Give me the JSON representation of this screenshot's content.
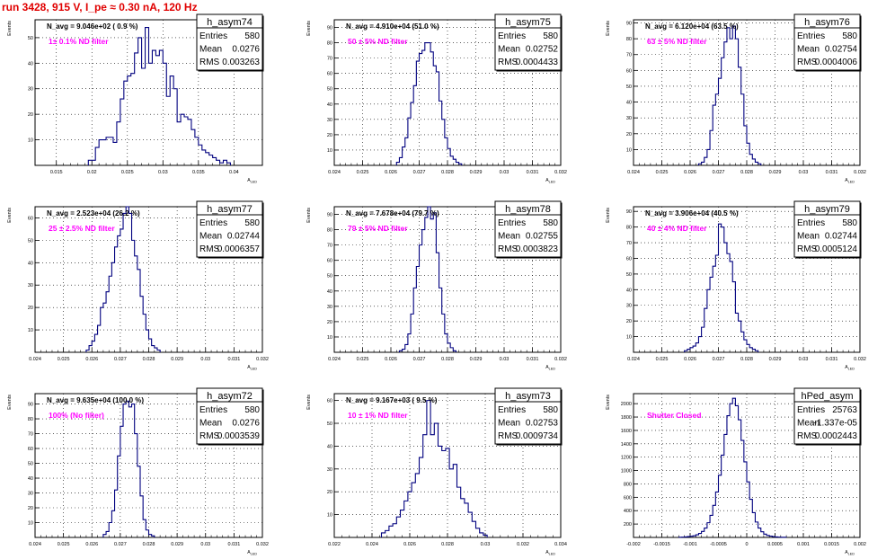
{
  "title": "run 3428,   915 V, I_pe ≈ 0.30 nA, 120 Hz",
  "x_axis_label": "A",
  "x_axis_label_sub": "LED",
  "y_axis_label": "Events",
  "colors": {
    "histogram": "#00007f",
    "grid": "#000000",
    "title": "#e00000",
    "filter_label": "#ff00ff"
  },
  "chart_data": [
    {
      "type": "bar",
      "name": "h_asym74",
      "navg": "N_avg = 9.046e+02 ( 0.9 %)",
      "filter": "1± 0.1% ND filter",
      "stats": {
        "entries": "580",
        "mean": "0.0276",
        "rms": "0.003263"
      },
      "xlim": [
        0.012,
        0.044
      ],
      "ylim": [
        0,
        57
      ],
      "xticks": [
        0.015,
        0.02,
        0.025,
        0.03,
        0.035,
        0.04
      ],
      "xtick_labels": [
        "0.015",
        "0.02",
        "0.025",
        "0.03",
        "0.035",
        "0.04"
      ],
      "yticks": [
        10,
        20,
        30,
        40,
        50
      ],
      "bin_start": 0.0195,
      "bin_width": 0.0005,
      "values": [
        2,
        2,
        7,
        10,
        10,
        11,
        11,
        9,
        17,
        26,
        33,
        35,
        36,
        44,
        50,
        38,
        54,
        40,
        45,
        43,
        45,
        40,
        27,
        35,
        30,
        17,
        20,
        19,
        18,
        14,
        11,
        8,
        6,
        5,
        4,
        3,
        2,
        1,
        2,
        1
      ]
    },
    {
      "type": "bar",
      "name": "h_asym75",
      "navg": "N_avg = 4.910e+04 (51.0 %)",
      "filter": "50 ± 5% ND filter",
      "stats": {
        "entries": "580",
        "mean": "0.02752",
        "rms": "0.0004433"
      },
      "xlim": [
        0.024,
        0.032
      ],
      "ylim": [
        0,
        95
      ],
      "xticks": [
        0.024,
        0.025,
        0.026,
        0.027,
        0.028,
        0.029,
        0.03,
        0.031,
        0.032
      ],
      "xtick_labels": [
        "0.024",
        "0.025",
        "0.026",
        "0.027",
        "0.028",
        "0.029",
        "0.03",
        "0.031",
        "0.032"
      ],
      "yticks": [
        10,
        20,
        30,
        40,
        50,
        60,
        70,
        80,
        90
      ],
      "bin_start": 0.0262,
      "bin_width": 0.0001,
      "values": [
        2,
        5,
        12,
        18,
        31,
        41,
        52,
        68,
        73,
        75,
        80,
        80,
        74,
        65,
        61,
        42,
        30,
        18,
        11,
        6,
        4,
        2,
        1
      ]
    },
    {
      "type": "bar",
      "name": "h_asym76",
      "navg": "N_avg = 6.120e+04 (63.5 %)",
      "filter": "63 ± 5% ND filter",
      "stats": {
        "entries": "580",
        "mean": "0.02754",
        "rms": "0.0004006"
      },
      "xlim": [
        0.024,
        0.032
      ],
      "ylim": [
        0,
        92
      ],
      "xticks": [
        0.024,
        0.025,
        0.026,
        0.027,
        0.028,
        0.029,
        0.03,
        0.031,
        0.032
      ],
      "xtick_labels": [
        "0.024",
        "0.025",
        "0.026",
        "0.027",
        "0.028",
        "0.029",
        "0.03",
        "0.031",
        "0.032"
      ],
      "yticks": [
        10,
        20,
        30,
        40,
        50,
        60,
        70,
        80,
        90
      ],
      "bin_start": 0.0263,
      "bin_width": 0.0001,
      "values": [
        1,
        2,
        5,
        10,
        22,
        38,
        45,
        55,
        68,
        78,
        87,
        80,
        88,
        80,
        62,
        45,
        25,
        14,
        7,
        4,
        2,
        1
      ]
    },
    {
      "type": "bar",
      "name": "h_asym77",
      "navg": "N_avg = 2.523e+04 (26.2 %)",
      "filter": "25 ± 2.5% ND filter",
      "stats": {
        "entries": "580",
        "mean": "0.02744",
        "rms": "0.0006357"
      },
      "xlim": [
        0.024,
        0.032
      ],
      "ylim": [
        0,
        65
      ],
      "xticks": [
        0.024,
        0.025,
        0.026,
        0.027,
        0.028,
        0.029,
        0.03,
        0.031,
        0.032
      ],
      "xtick_labels": [
        "0.024",
        "0.025",
        "0.026",
        "0.027",
        "0.028",
        "0.029",
        "0.03",
        "0.031",
        "0.032"
      ],
      "yticks": [
        10,
        20,
        30,
        40,
        50,
        60
      ],
      "bin_start": 0.0258,
      "bin_width": 0.0001,
      "values": [
        1,
        3,
        5,
        8,
        12,
        20,
        22,
        27,
        34,
        40,
        47,
        52,
        55,
        62,
        65,
        62,
        50,
        43,
        37,
        25,
        17,
        10,
        6,
        3,
        2,
        1
      ]
    },
    {
      "type": "bar",
      "name": "h_asym78",
      "navg": "N_avg = 7.678e+04 (79.7 %)",
      "filter": "79 ± 5% ND filter",
      "stats": {
        "entries": "580",
        "mean": "0.02755",
        "rms": "0.0003823"
      },
      "xlim": [
        0.024,
        0.032
      ],
      "ylim": [
        0,
        95
      ],
      "xticks": [
        0.024,
        0.025,
        0.026,
        0.027,
        0.028,
        0.029,
        0.03,
        0.031,
        0.032
      ],
      "xtick_labels": [
        "0.024",
        "0.025",
        "0.026",
        "0.027",
        "0.028",
        "0.029",
        "0.03",
        "0.031",
        "0.032"
      ],
      "yticks": [
        10,
        20,
        30,
        40,
        50,
        60,
        70,
        80,
        90
      ],
      "bin_start": 0.0263,
      "bin_width": 0.0001,
      "values": [
        1,
        2,
        5,
        12,
        25,
        42,
        56,
        70,
        80,
        88,
        95,
        87,
        91,
        65,
        42,
        25,
        12,
        6,
        3,
        1
      ]
    },
    {
      "type": "bar",
      "name": "h_asym79",
      "navg": "N_avg = 3.906e+04 (40.5 %)",
      "filter": "40 ± 4% ND filter",
      "stats": {
        "entries": "580",
        "mean": "0.02744",
        "rms": "0.0005124"
      },
      "xlim": [
        0.024,
        0.032
      ],
      "ylim": [
        0,
        93
      ],
      "xticks": [
        0.024,
        0.025,
        0.026,
        0.027,
        0.028,
        0.029,
        0.03,
        0.031,
        0.032
      ],
      "xtick_labels": [
        "0.024",
        "0.025",
        "0.026",
        "0.027",
        "0.028",
        "0.029",
        "0.03",
        "0.031",
        "0.032"
      ],
      "yticks": [
        10,
        20,
        30,
        40,
        50,
        60,
        70,
        80,
        90
      ],
      "bin_start": 0.0258,
      "bin_width": 0.0001,
      "values": [
        1,
        2,
        3,
        4,
        6,
        10,
        16,
        28,
        40,
        48,
        55,
        62,
        82,
        80,
        70,
        63,
        58,
        45,
        25,
        20,
        13,
        8,
        5,
        3,
        2,
        1
      ]
    },
    {
      "type": "bar",
      "name": "h_asym72",
      "navg": "N_avg = 9.635e+04 (100.0 %)",
      "filter": "100% (No filter)",
      "stats": {
        "entries": "580",
        "mean": "0.0276",
        "rms": "0.0003539"
      },
      "xlim": [
        0.024,
        0.032
      ],
      "ylim": [
        0,
        97
      ],
      "xticks": [
        0.024,
        0.025,
        0.026,
        0.027,
        0.028,
        0.029,
        0.03,
        0.031,
        0.032
      ],
      "xtick_labels": [
        "0.024",
        "0.025",
        "0.026",
        "0.027",
        "0.028",
        "0.029",
        "0.03",
        "0.031",
        "0.032"
      ],
      "yticks": [
        10,
        20,
        30,
        40,
        50,
        60,
        70,
        80,
        90
      ],
      "bin_start": 0.0264,
      "bin_width": 0.0001,
      "values": [
        2,
        4,
        10,
        18,
        32,
        55,
        75,
        90,
        92,
        88,
        90,
        70,
        48,
        28,
        12,
        5,
        2,
        1
      ]
    },
    {
      "type": "bar",
      "name": "h_asym73",
      "navg": "N_avg = 9.167e+03 ( 9.5 %)",
      "filter": "10 ± 1% ND filter",
      "stats": {
        "entries": "580",
        "mean": "0.02753",
        "rms": "0.0009734"
      },
      "xlim": [
        0.022,
        0.034
      ],
      "ylim": [
        0,
        63
      ],
      "xticks": [
        0.022,
        0.024,
        0.026,
        0.028,
        0.03,
        0.032,
        0.034
      ],
      "xtick_labels": [
        "0.022",
        "0.024",
        "0.026",
        "0.028",
        "0.03",
        "0.032",
        "0.034"
      ],
      "yticks": [
        10,
        20,
        30,
        40,
        50,
        60
      ],
      "bin_start": 0.0245,
      "bin_width": 0.0002,
      "values": [
        2,
        3,
        5,
        6,
        9,
        12,
        16,
        20,
        24,
        28,
        35,
        45,
        60,
        45,
        50,
        40,
        38,
        39,
        30,
        32,
        22,
        17,
        15,
        11,
        7,
        4,
        2,
        1
      ]
    },
    {
      "type": "bar",
      "name": "hPed_asym",
      "navg": "",
      "filter": "Shutter Closed",
      "stats": {
        "entries": "25763",
        "mean": "-1.337e-05",
        "rms": "0.0002443"
      },
      "xlim": [
        -0.002,
        0.002
      ],
      "ylim": [
        0,
        2150
      ],
      "xticks": [
        -0.002,
        -0.0015,
        -0.001,
        -0.0005,
        0,
        0.0005,
        0.001,
        0.0015,
        0.002
      ],
      "xtick_labels": [
        "-0.002",
        "-0.0015",
        "-0.001",
        "-0.0005",
        "0",
        "0.0005",
        "0.001",
        "0.0015",
        "0.002"
      ],
      "yticks": [
        200,
        400,
        600,
        800,
        1000,
        1200,
        1400,
        1600,
        1800,
        2000
      ],
      "bin_start": -0.0012,
      "bin_width": 5e-05,
      "values": [
        2,
        5,
        8,
        12,
        18,
        25,
        40,
        60,
        90,
        140,
        220,
        330,
        480,
        680,
        930,
        1230,
        1540,
        1820,
        2000,
        2080,
        1970,
        1760,
        1450,
        1130,
        830,
        570,
        370,
        230,
        140,
        85,
        50,
        30,
        20,
        12,
        8,
        5,
        3,
        2
      ]
    }
  ]
}
